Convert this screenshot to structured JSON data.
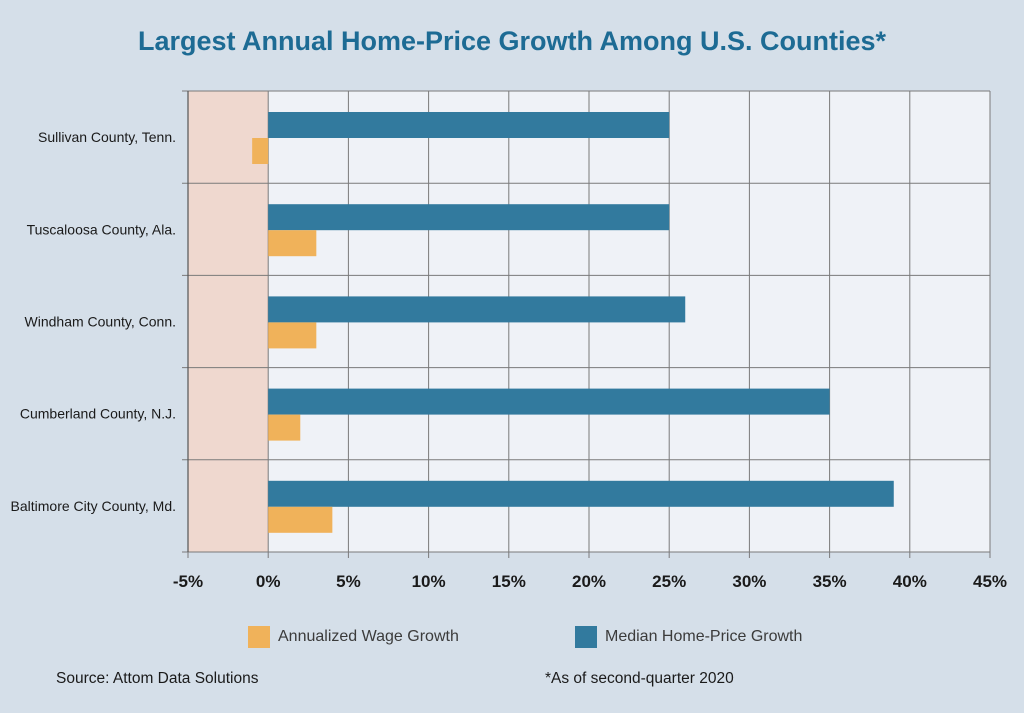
{
  "chart_data": {
    "type": "bar",
    "orientation": "horizontal",
    "title": "Largest Annual Home-Price Growth Among U.S. Counties*",
    "categories": [
      "Sullivan County, Tenn.",
      "Tuscaloosa County, Ala.",
      "Windham County, Conn.",
      "Cumberland County, N.J.",
      "Baltimore City County, Md."
    ],
    "series": [
      {
        "name": "Median Home-Price Growth",
        "color": "#327a9e",
        "values": [
          25,
          25,
          26,
          35,
          39
        ]
      },
      {
        "name": "Annualized Wage Growth",
        "color": "#f0b25a",
        "values": [
          -1,
          3,
          3,
          2,
          4
        ]
      }
    ],
    "xlim": [
      -5,
      45
    ],
    "xticks": [
      -5,
      0,
      5,
      10,
      15,
      20,
      25,
      30,
      35,
      40,
      45
    ],
    "tick_suffix": "%",
    "negative_region_color": "#efd8cf",
    "grid": true
  },
  "legend": {
    "items": [
      {
        "label": "Annualized Wage Growth",
        "color": "#f0b25a"
      },
      {
        "label": "Median Home-Price Growth",
        "color": "#327a9e"
      }
    ]
  },
  "footer": {
    "source": "Source: Attom Data Solutions",
    "note": "*As of second-quarter 2020"
  }
}
